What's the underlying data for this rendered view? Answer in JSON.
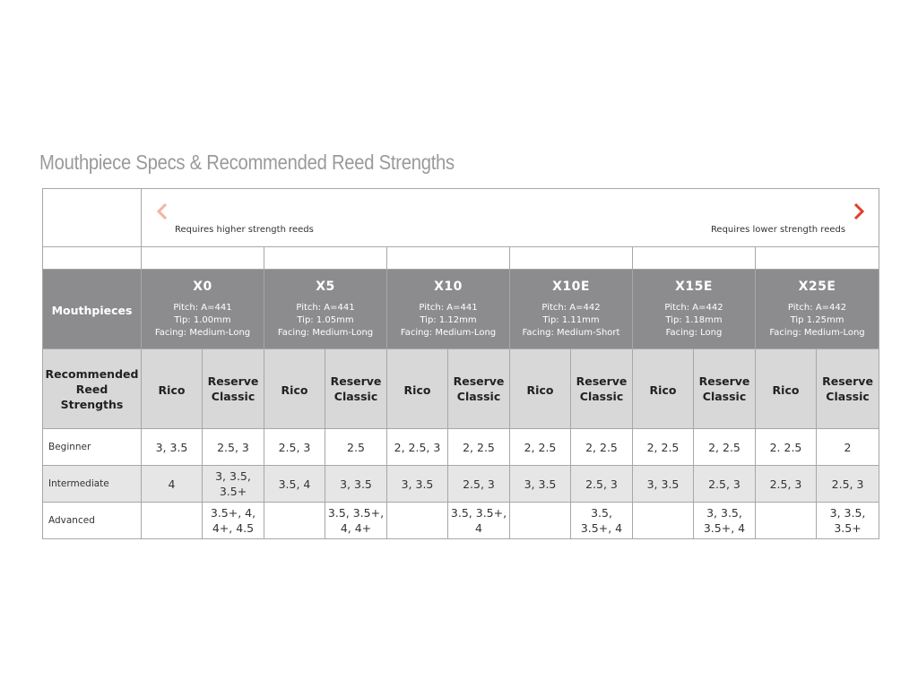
{
  "title": "Mouthpiece Specs & Recommended Reed Strengths",
  "arrow": {
    "left_label": "Requires higher strength reeds",
    "right_label": "Requires lower strength reeds",
    "start_color": "#f3b3a3",
    "end_color": "#e43d2a"
  },
  "mouthpieces_label": "Mouthpieces",
  "recommended_label": [
    "Recommended",
    "Reed",
    "Strengths"
  ],
  "brands": {
    "rico": "Rico",
    "reserve": [
      "Reserve",
      "Classic"
    ]
  },
  "models": [
    {
      "name": "X0",
      "pitch": "Pitch: A=441",
      "tip": "Tip: 1.00mm",
      "facing": "Facing: Medium-Long"
    },
    {
      "name": "X5",
      "pitch": "Pitch: A=441",
      "tip": "Tip: 1.05mm",
      "facing": "Facing: Medium-Long"
    },
    {
      "name": "X10",
      "pitch": "Pitch: A=441",
      "tip": "Tip: 1.12mm",
      "facing": "Facing: Medium-Long"
    },
    {
      "name": "X10E",
      "pitch": "Pitch: A=442",
      "tip": "Tip: 1.11mm",
      "facing": "Facing: Medium-Short"
    },
    {
      "name": "X15E",
      "pitch": "Pitch: A=442",
      "tip": "Tip: 1.18mm",
      "facing": "Facing: Long"
    },
    {
      "name": "X25E",
      "pitch": "Pitch: A=442",
      "tip": "Tip 1.25mm",
      "facing": "Facing: Medium-Long"
    }
  ],
  "rows": [
    {
      "label": "Beginner",
      "values": [
        "3, 3.5",
        "2.5, 3",
        "2.5, 3",
        "2.5",
        "2, 2.5, 3",
        "2, 2.5",
        "2, 2.5",
        "2, 2.5",
        "2, 2.5",
        "2, 2.5",
        "2. 2.5",
        "2"
      ]
    },
    {
      "label": "Intermediate",
      "values": [
        "4",
        [
          "3, 3.5,",
          "3.5+"
        ],
        "3.5, 4",
        "3, 3.5",
        "3, 3.5",
        "2.5, 3",
        "3, 3.5",
        "2.5, 3",
        "3, 3.5",
        "2.5, 3",
        "2.5, 3",
        "2.5, 3"
      ]
    },
    {
      "label": "Advanced",
      "values": [
        "",
        [
          "3.5+, 4,",
          "4+, 4.5"
        ],
        "",
        [
          "3.5, 3.5+,",
          "4, 4+"
        ],
        "",
        [
          "3.5, 3.5+,",
          "4"
        ],
        "",
        [
          "3.5,",
          "3.5+, 4"
        ],
        "",
        [
          "3, 3.5,",
          "3.5+, 4"
        ],
        "",
        [
          "3, 3.5,",
          "3.5+"
        ]
      ]
    }
  ]
}
